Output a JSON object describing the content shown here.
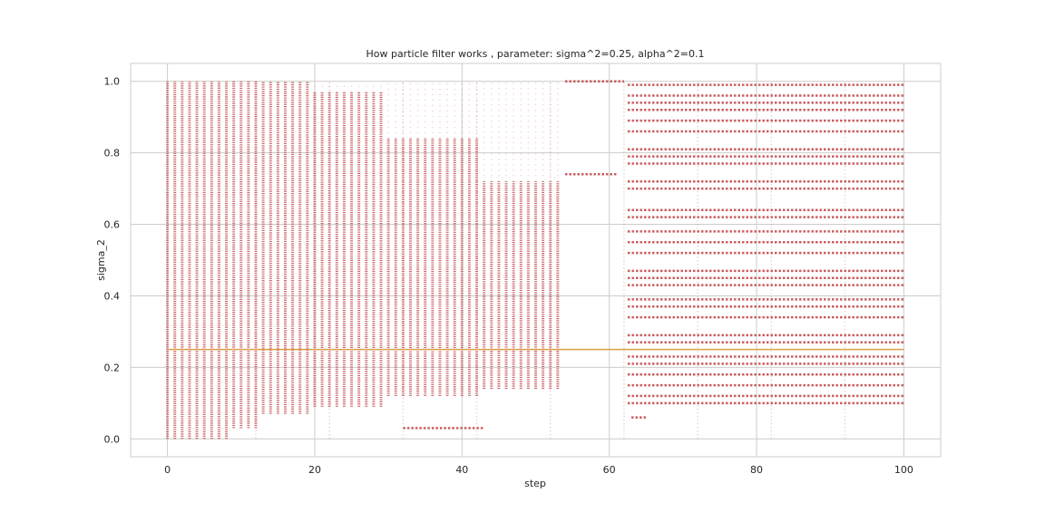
{
  "chart_data": {
    "type": "scatter",
    "title": "How particle filter works , parameter: sigma^2=0.25, alpha^2=0.1",
    "xlabel": "step",
    "ylabel": "sigma_2",
    "xlim": [
      -5,
      105
    ],
    "ylim": [
      -0.05,
      1.05
    ],
    "xticks": [
      0,
      20,
      40,
      60,
      80,
      100
    ],
    "yticks": [
      0.0,
      0.2,
      0.4,
      0.6,
      0.8,
      1.0
    ],
    "ytick_labels": [
      "0.0",
      "0.2",
      "0.4",
      "0.6",
      "0.8",
      "1.0"
    ],
    "grid": true,
    "legend": "none",
    "colors": {
      "particles": "#c44e52",
      "true_value": "#dd9f4a",
      "grid": "#cccccc",
      "frame": "#cccccc"
    },
    "true_value_line": {
      "y": 0.25,
      "x": [
        0,
        100
      ]
    },
    "particle_columns": [
      {
        "x_from": 0,
        "x_to": 5,
        "y_min": 0.0,
        "y_max": 1.0
      },
      {
        "x_from": 6,
        "x_to": 8,
        "y_min": 0.0,
        "y_max": 1.0
      },
      {
        "x_from": 9,
        "x_to": 12,
        "y_min": 0.03,
        "y_max": 1.0
      },
      {
        "x_from": 13,
        "x_to": 19,
        "y_min": 0.07,
        "y_max": 1.0
      },
      {
        "x_from": 20,
        "x_to": 29,
        "y_min": 0.09,
        "y_max": 0.97
      },
      {
        "x_from": 30,
        "x_to": 42,
        "y_min": 0.12,
        "y_max": 0.84
      },
      {
        "x_from": 43,
        "x_to": 53,
        "y_min": 0.14,
        "y_max": 0.72
      }
    ],
    "particle_bands_late": {
      "x_from": 62.5,
      "x_to": 100,
      "y_values": [
        0.1,
        0.12,
        0.15,
        0.18,
        0.21,
        0.23,
        0.27,
        0.29,
        0.34,
        0.37,
        0.39,
        0.43,
        0.45,
        0.47,
        0.52,
        0.55,
        0.58,
        0.62,
        0.64,
        0.7,
        0.72,
        0.77,
        0.79,
        0.81,
        0.86,
        0.89,
        0.92,
        0.94,
        0.96,
        0.99
      ]
    },
    "isolated_segments": [
      {
        "x": [
          54,
          61
        ],
        "y": 0.74
      },
      {
        "x": [
          54,
          62
        ],
        "y": 1.0
      },
      {
        "x": [
          32,
          43
        ],
        "y": 0.03
      },
      {
        "x": [
          63,
          65
        ],
        "y": 0.06
      }
    ]
  }
}
